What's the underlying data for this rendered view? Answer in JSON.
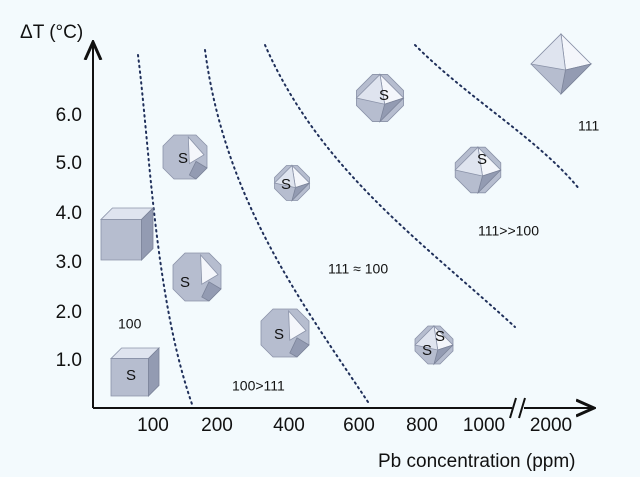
{
  "axes": {
    "y_label": "ΔT (°C)",
    "x_label": "Pb concentration (ppm)",
    "y_ticks": [
      "1.0",
      "2.0",
      "3.0",
      "4.0",
      "5.0",
      "6.0"
    ],
    "x_ticks": [
      "100",
      "200",
      "400",
      "600",
      "800",
      "1000",
      "2000"
    ]
  },
  "regions": [
    "100",
    "100>111",
    "111 ≈ 100",
    "111>>100",
    "111"
  ],
  "crystals": [
    {
      "labels": [
        "S"
      ]
    },
    {
      "labels": [
        "S"
      ]
    },
    {
      "labels": [
        "S"
      ]
    },
    {
      "labels": [
        "S"
      ]
    },
    {
      "labels": [
        "S"
      ]
    },
    {
      "labels": [
        "S"
      ]
    },
    {
      "labels": [
        "S"
      ]
    },
    {
      "labels": [
        "S",
        "S"
      ]
    }
  ]
}
